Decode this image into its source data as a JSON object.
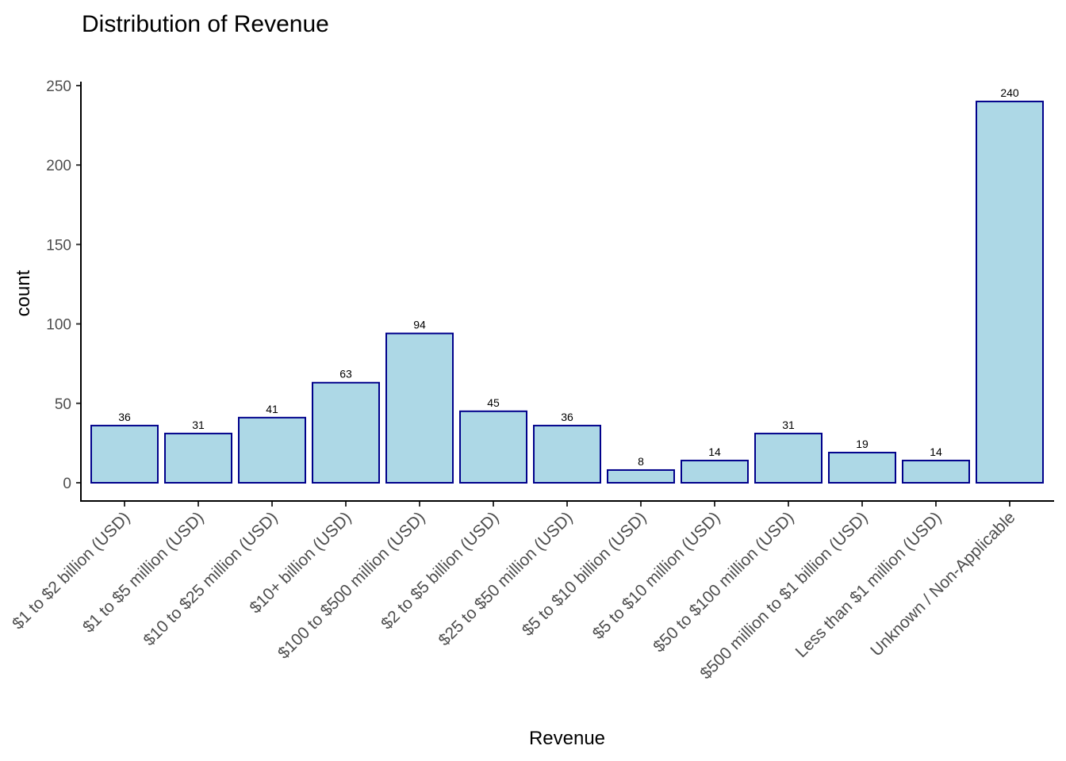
{
  "chart_data": {
    "type": "bar",
    "title": "Distribution of Revenue",
    "xlabel": "Revenue",
    "ylabel": "count",
    "ylim": [
      0,
      250
    ],
    "yticks": [
      0,
      50,
      100,
      150,
      200,
      250
    ],
    "categories": [
      "$1 to $2 billion (USD)",
      "$1 to $5 million (USD)",
      "$10 to $25 million (USD)",
      "$10+ billion (USD)",
      "$100 to $500 million (USD)",
      "$2 to $5 billion (USD)",
      "$25 to $50 million (USD)",
      "$5 to $10 billion (USD)",
      "$5 to $10 million (USD)",
      "$50 to $100 million (USD)",
      "$500 million to $1 billion (USD)",
      "Less than $1 million (USD)",
      "Unknown / Non-Applicable"
    ],
    "values": [
      36,
      31,
      41,
      63,
      94,
      45,
      36,
      8,
      14,
      31,
      19,
      14,
      240
    ],
    "bar_fill": "#add8e6",
    "bar_stroke": "#00008b",
    "grid": false,
    "legend": "none"
  }
}
